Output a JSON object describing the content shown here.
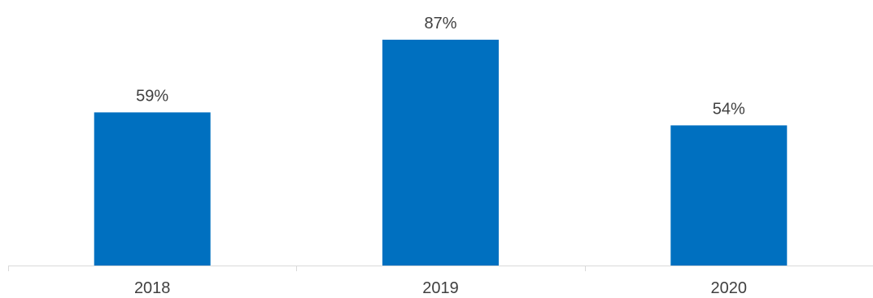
{
  "chart_data": {
    "type": "bar",
    "categories": [
      "2018",
      "2019",
      "2020"
    ],
    "values": [
      59,
      87,
      54
    ],
    "data_labels": [
      "59%",
      "87%",
      "54%"
    ],
    "ylim": [
      0,
      100
    ],
    "grid": false,
    "legend": "none",
    "bar_color": "#0070C0",
    "axis_color": "#D9D9D9",
    "text_color": "#404040"
  }
}
